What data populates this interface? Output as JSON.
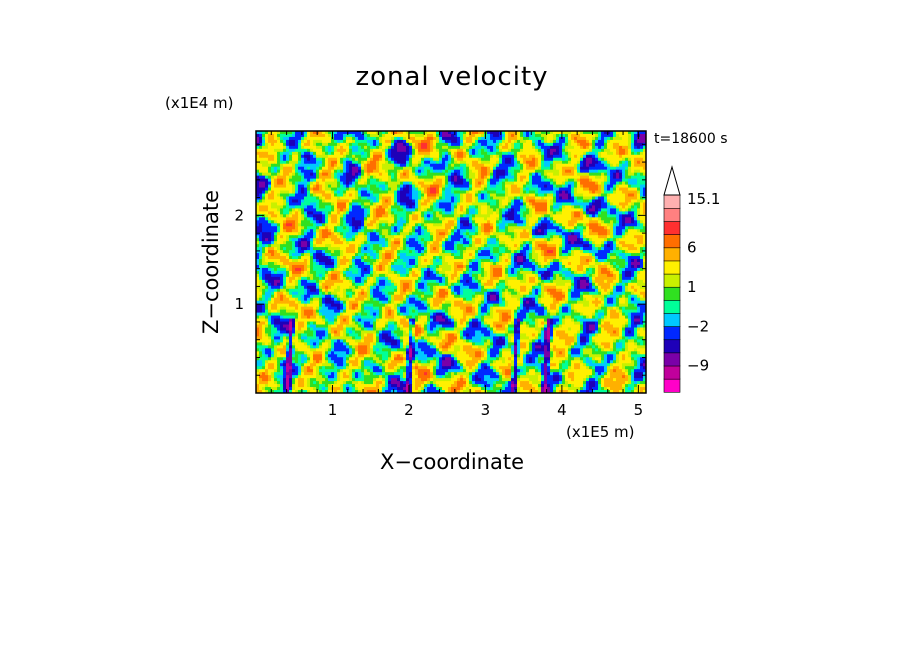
{
  "chart_data": {
    "type": "heatmap",
    "title": "zonal velocity",
    "xlabel": "X−coordinate",
    "ylabel": "Z−coordinate",
    "x_unit": "(x1E5 m)",
    "y_unit": "(x1E4 m)",
    "time_label": "t=18600 s",
    "xlim": [
      0,
      5.1
    ],
    "ylim": [
      0,
      2.95
    ],
    "x_ticks": [
      1,
      2,
      3,
      4,
      5
    ],
    "y_ticks": [
      1,
      2
    ],
    "x_tick_labels": [
      "1",
      "2",
      "3",
      "4",
      "5"
    ],
    "y_tick_labels": [
      "1",
      "2"
    ],
    "colorbar": {
      "levels": [
        -15,
        -12,
        -9,
        -6,
        -4,
        -2,
        -1,
        0,
        1,
        2,
        4,
        6,
        9,
        12,
        15.1
      ],
      "colors": [
        "#ff00c8",
        "#c0009c",
        "#7a00a8",
        "#1e00b8",
        "#0028ff",
        "#00c8ff",
        "#00ff99",
        "#30e020",
        "#c8f000",
        "#fff000",
        "#ffb000",
        "#ff6e00",
        "#ff3030",
        "#ff8080",
        "#ffb0b0"
      ],
      "labels": [
        {
          "text": "15.1",
          "value": 15.1
        },
        {
          "text": "6",
          "value": 6
        },
        {
          "text": "1",
          "value": 1
        },
        {
          "text": "−2",
          "value": -2
        },
        {
          "text": "−9",
          "value": -9
        }
      ],
      "extend": "max"
    }
  }
}
